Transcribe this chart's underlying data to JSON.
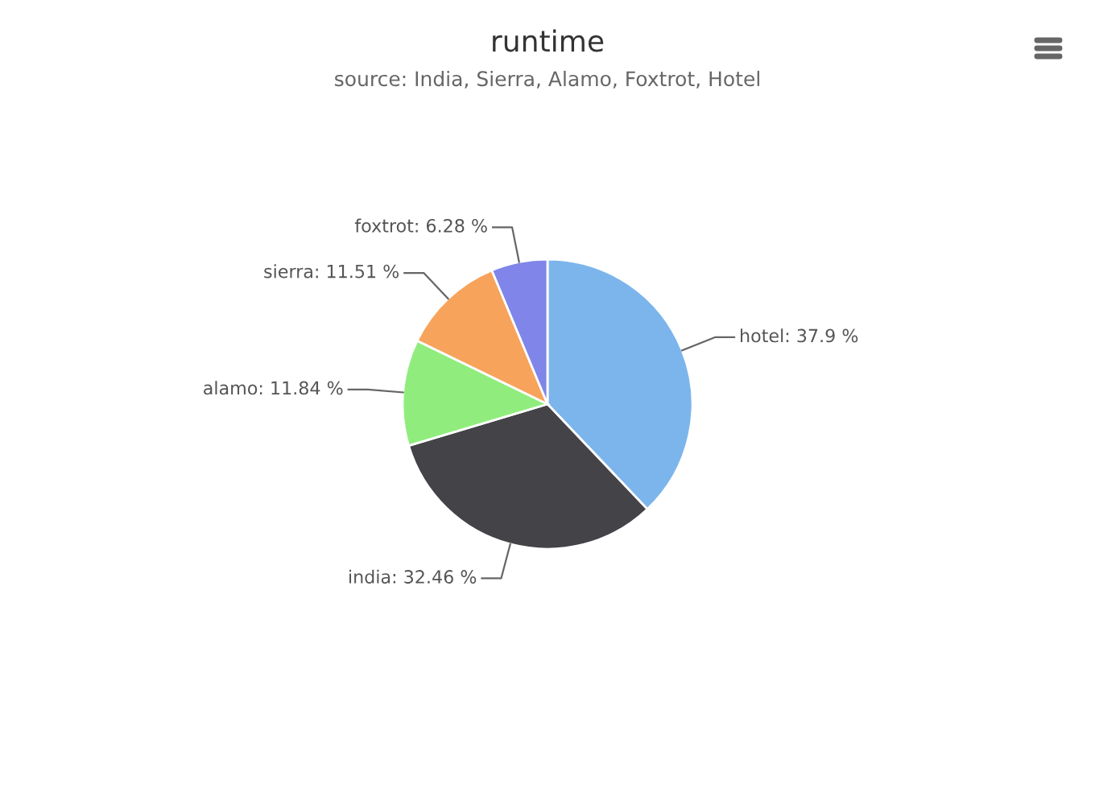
{
  "chart_data": {
    "type": "pie",
    "title": "runtime",
    "subtitle": "source: India, Sierra, Alamo, Foxtrot, Hotel",
    "categories": [
      "hotel",
      "india",
      "alamo",
      "sierra",
      "foxtrot"
    ],
    "values": [
      37.9,
      32.46,
      11.84,
      11.51,
      6.28
    ],
    "value_labels": [
      ": 37.9 %",
      ": 32.46 %",
      ": 11.84 %",
      ": 11.51 %",
      ": 6.28 %"
    ],
    "colors": [
      "#7cb5ec",
      "#434348",
      "#90ed7d",
      "#f7a35c",
      "#8085e9"
    ],
    "legend": false
  }
}
